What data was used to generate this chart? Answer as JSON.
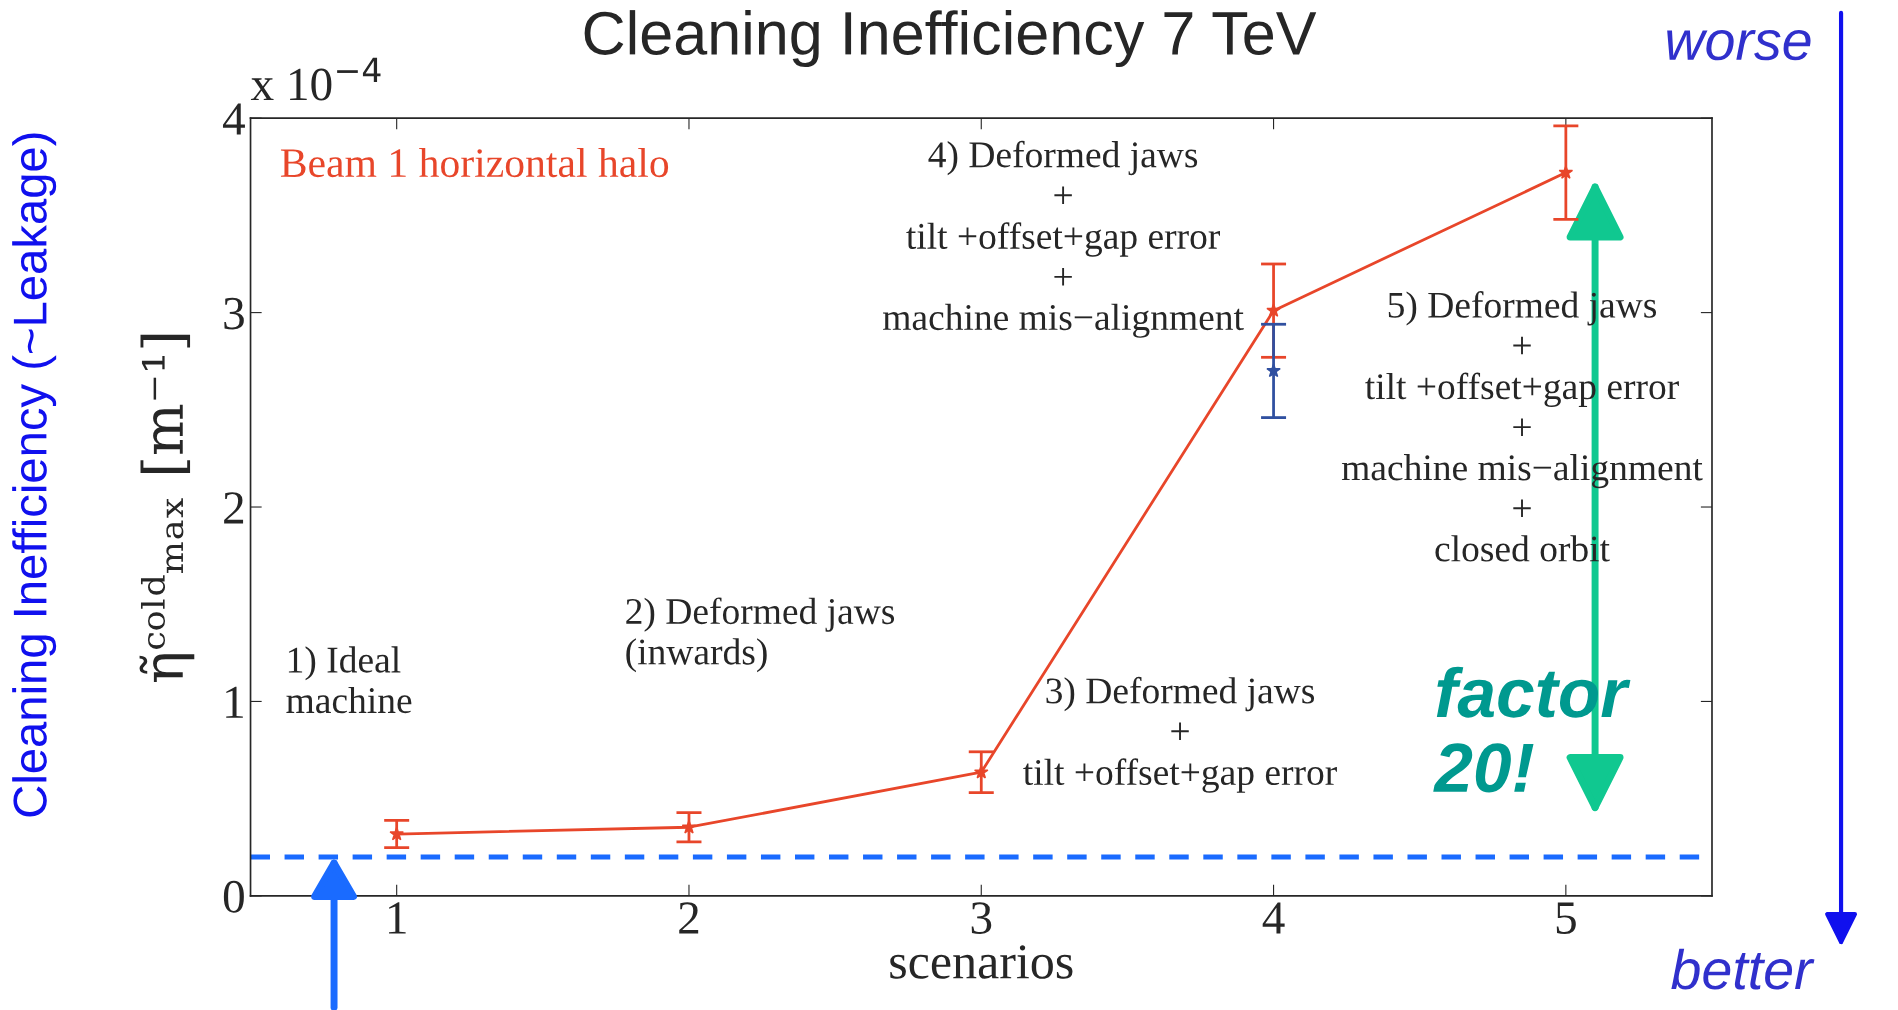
{
  "chart_data": {
    "type": "line",
    "title": "Cleaning Inefficiency 7 TeV",
    "xlabel": "scenarios",
    "ylabel": "η̃ᶜᵒˡᵈₘₐₓ [m⁻¹]",
    "x": [
      1,
      2,
      3,
      4,
      5
    ],
    "series": [
      {
        "name": "Beam 1 horizontal halo",
        "color": "#e8462a",
        "values": [
          0.318,
          0.353,
          0.636,
          3.01,
          3.72
        ],
        "errors": [
          0.07,
          0.075,
          0.105,
          [
            2.77,
            3.25
          ],
          [
            3.48,
            3.96
          ]
        ],
        "marker": "star",
        "line_style": "solid"
      },
      {
        "type": "scatter",
        "color": "#3050a0",
        "x": [
          4
        ],
        "values": [
          2.7
        ],
        "errors": [
          [
            2.46,
            2.94
          ]
        ],
        "marker": "star"
      }
    ],
    "xlim": [
      0.5,
      5.5
    ],
    "ylim": [
      0,
      4
    ],
    "xticks": [
      1,
      2,
      3,
      4,
      5
    ],
    "yticks": [
      0,
      1,
      2,
      3,
      4
    ],
    "ref_lines": [
      {
        "axis": "y",
        "value": 0.2,
        "color": "#1a6bff",
        "line_style": "dashed"
      }
    ],
    "grid": false,
    "legend": false,
    "annotations": [
      "x 10$^{−4}$",
      "1) Ideal\nmachine",
      "2) Deformed jaws\n(inwards)",
      "3) Deformed jaws\n+\ntilt +offset+gap error",
      "4) Deformed jaws\n+\ntilt +offset+gap error\n+\nmachine mis−alignment",
      "5) Deformed jaws\n+\ntilt +offset+gap error\n+\nmachine mis−alignment\n+\nclosed orbit",
      "factor\n20!",
      "Cleaning Inefficiency (~Leakage)",
      "worse",
      "better"
    ]
  }
}
